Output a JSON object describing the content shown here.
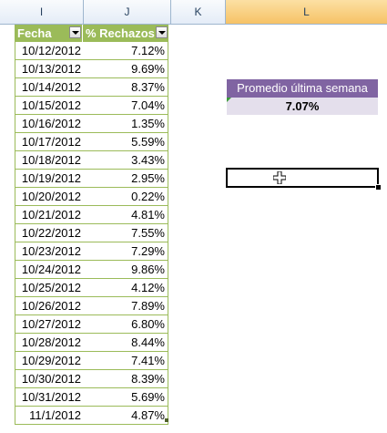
{
  "columns": {
    "i": "I",
    "j": "J",
    "k": "K",
    "l": "L"
  },
  "table": {
    "headers": [
      "Fecha",
      "% Rechazos"
    ],
    "rows": [
      [
        "10/12/2012",
        "7.12%"
      ],
      [
        "10/13/2012",
        "9.69%"
      ],
      [
        "10/14/2012",
        "8.37%"
      ],
      [
        "10/15/2012",
        "7.04%"
      ],
      [
        "10/16/2012",
        "1.35%"
      ],
      [
        "10/17/2012",
        "5.59%"
      ],
      [
        "10/18/2012",
        "3.43%"
      ],
      [
        "10/19/2012",
        "2.95%"
      ],
      [
        "10/20/2012",
        "0.22%"
      ],
      [
        "10/21/2012",
        "4.81%"
      ],
      [
        "10/22/2012",
        "7.55%"
      ],
      [
        "10/23/2012",
        "7.29%"
      ],
      [
        "10/24/2012",
        "9.86%"
      ],
      [
        "10/25/2012",
        "4.12%"
      ],
      [
        "10/26/2012",
        "7.89%"
      ],
      [
        "10/27/2012",
        "6.80%"
      ],
      [
        "10/28/2012",
        "8.44%"
      ],
      [
        "10/29/2012",
        "7.41%"
      ],
      [
        "10/30/2012",
        "8.39%"
      ],
      [
        "10/31/2012",
        "5.69%"
      ],
      [
        "11/1/2012",
        "4.87%"
      ]
    ]
  },
  "summary": {
    "label": "Promedio última semana",
    "value": "7.07%"
  },
  "colors": {
    "table_header": "#9bbb59",
    "summary_header": "#8064a2",
    "summary_value_bg": "#e4dfec",
    "selected_column": "#f6c266"
  }
}
